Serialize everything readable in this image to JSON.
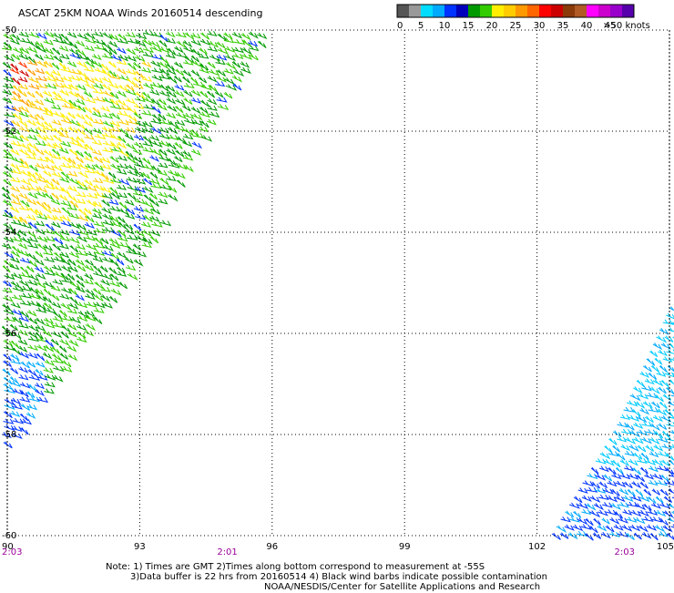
{
  "title": "ASCAT 25KM NOAA Winds 20160514 descending",
  "legend": {
    "colors": [
      "#555555",
      "#999999",
      "#00ddff",
      "#00aaff",
      "#0033ff",
      "#0000bb",
      "#009900",
      "#33cc00",
      "#ffee00",
      "#ffcc00",
      "#ff9900",
      "#ff6600",
      "#ff0000",
      "#cc0000",
      "#8b3a0a",
      "#b05a25",
      "#ff00ff",
      "#cc00cc",
      "#9900cc",
      "#5500aa"
    ],
    "labels": [
      "0",
      "5",
      "10",
      "15",
      "20",
      "25",
      "30",
      "35",
      "40",
      "45",
      ">50 knots"
    ]
  },
  "chart_data": {
    "type": "map",
    "title": "ASCAT 25KM NOAA Winds 20160514 descending",
    "xlim": [
      90,
      105
    ],
    "ylim": [
      -60,
      -50
    ],
    "x_ticks": [
      "90",
      "93",
      "96",
      "99",
      "102",
      "105"
    ],
    "y_ticks": [
      "-50",
      "-52",
      "-54",
      "-56",
      "-58",
      "-60"
    ],
    "grid": "dotted",
    "time_labels": [
      {
        "lon": 90,
        "text": "2:03"
      },
      {
        "lon": 95,
        "text": "2:01"
      },
      {
        "lon": 104,
        "text": "2:03"
      }
    ],
    "wind_speed_units": "knots",
    "swaths": [
      {
        "side": "west",
        "speed_range_knots": [
          5,
          40
        ],
        "dominant_colors": [
          "green",
          "yellow",
          "orange",
          "blue"
        ]
      },
      {
        "side": "east",
        "speed_range_knots": [
          5,
          15
        ],
        "dominant_colors": [
          "cyan",
          "blue"
        ]
      }
    ]
  },
  "notes": [
    "Note: 1) Times are GMT 2)Times along bottom correspond to measurement at -55S",
    "3)Data buffer is 22 hrs from 20160514 4) Black wind barbs indicate possible contamination",
    "NOAA/NESDIS/Center for Satellite Applications and Research"
  ]
}
